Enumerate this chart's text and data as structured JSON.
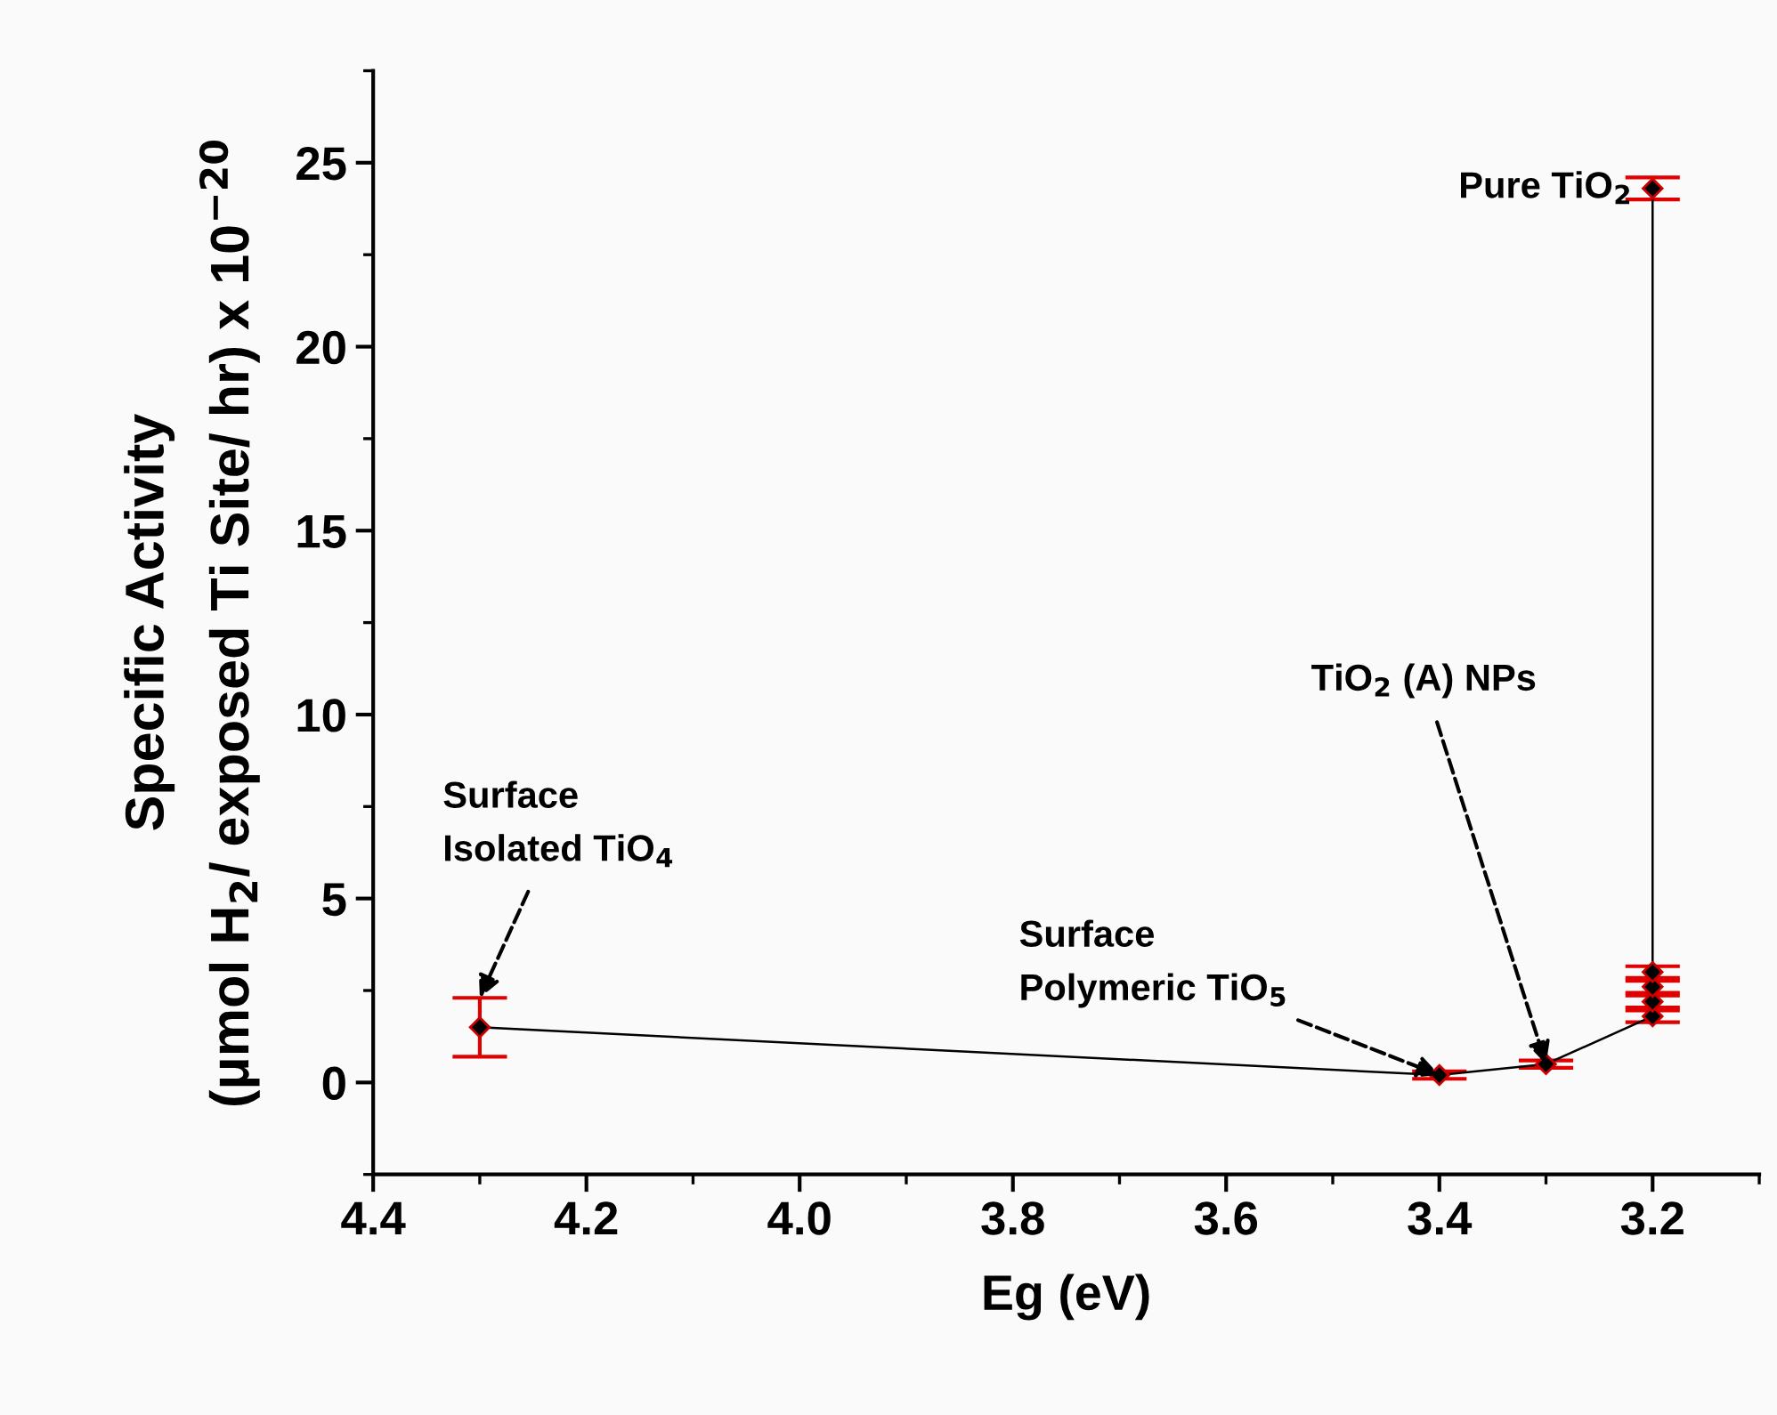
{
  "chart_data": {
    "type": "line",
    "xlabel": "Eg (eV)",
    "ylabel": "Specific Activity\n(μmol H$_{2}$/ exposed Ti Site/ hr) x 10$^{−20}$",
    "x": [
      4.3,
      3.4,
      3.3,
      3.2,
      3.2,
      3.2,
      3.2,
      3.2
    ],
    "series": [
      {
        "color": "#000000",
        "values": [
          1.5,
          0.2,
          0.5,
          1.8,
          2.2,
          2.6,
          3.0,
          24.3
        ],
        "errors": [
          0.8,
          0.1,
          0.1,
          0.16,
          0.16,
          0.16,
          0.16,
          0.3
        ]
      }
    ],
    "marker": "diamond",
    "line_style": "solid",
    "grid": false,
    "legend": false,
    "xlim": [
      4.4,
      3.1
    ],
    "xticks": [
      4.4,
      4.2,
      {
        "value": 4.0,
        "label": "4.0"
      },
      3.8,
      3.6,
      3.4,
      3.2
    ],
    "ylim": [
      -2.5,
      27.5
    ],
    "yticks": [
      0,
      5,
      10,
      15,
      20,
      25
    ],
    "annotations": [
      {
        "text": "Surface\nIsolated TiO$_{4}$",
        "x": 4.3,
        "y": 2.3
      },
      {
        "text": "Surface\nPolymeric TiO$_{5}$",
        "x": 3.4,
        "y": 0.2
      },
      {
        "text": "TiO$_{2}$ (A) NPs",
        "x": 3.3,
        "y": 0.5
      },
      {
        "text": "Pure TiO$_{2}$",
        "x": 3.2,
        "y": 24.3
      }
    ]
  }
}
